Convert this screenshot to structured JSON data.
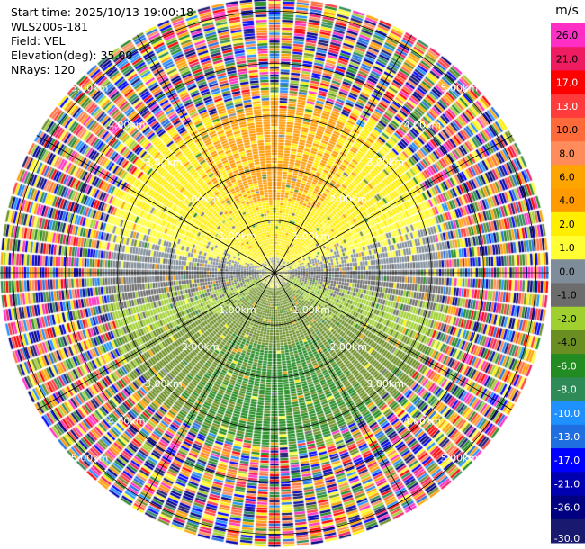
{
  "header": {
    "start_time": "Start time: 2025/10/13 19:00:18",
    "instrument": "WLS200s-181",
    "field": "Field: VEL",
    "elevation": "Elevation(deg): 35.00",
    "nrays": "NRays: 120"
  },
  "chart_data": {
    "type": "heatmap",
    "projection": "polar-ppi",
    "field": "VEL",
    "units": "m/s",
    "n_rays": 120,
    "range_rings_km": [
      1.0,
      2.0,
      3.0,
      4.0,
      5.0
    ],
    "ring_labels": [
      "1.00km",
      "2.00km",
      "3.00km",
      "4.00km",
      "5.00km"
    ],
    "max_range_km": 5.25,
    "radial_spokes_deg": [
      0,
      30,
      60,
      90,
      120,
      150,
      180,
      210,
      240,
      270,
      300,
      330
    ],
    "colorbar": {
      "label": "m/s",
      "ticks": [
        "26.0",
        "21.0",
        "17.0",
        "13.0",
        "10.0",
        "8.0",
        "6.0",
        "4.0",
        "2.0",
        "1.0",
        "0.0",
        "-1.0",
        "-2.0",
        "-4.0",
        "-6.0",
        "-8.0",
        "-10.0",
        "-13.0",
        "-17.0",
        "-21.0",
        "-26.0",
        "-30.0"
      ],
      "colors": [
        "#ff2ec4",
        "#f01c62",
        "#ff0000",
        "#ff3b3b",
        "#ff6a3a",
        "#ff8c5a",
        "#ffa500",
        "#ff9a00",
        "#ffee00",
        "#ffff33",
        "#7f8c99",
        "#6c6c6c",
        "#a0d030",
        "#6b8e23",
        "#228b22",
        "#2e8b57",
        "#1e90ff",
        "#1f6fe0",
        "#0000ff",
        "#0000b0",
        "#000080",
        "#191970"
      ]
    },
    "velocity_pattern": {
      "inbound_sector": "north",
      "inbound_values_ms": [
        2.0,
        4.0
      ],
      "outbound_sector": "south",
      "outbound_values_ms": [
        -2.0,
        -6.0
      ],
      "near_zero_band": "east-west",
      "clean_range_km": [
        0.3,
        3.3
      ],
      "noisy_range_km": [
        3.3,
        5.25
      ]
    }
  }
}
